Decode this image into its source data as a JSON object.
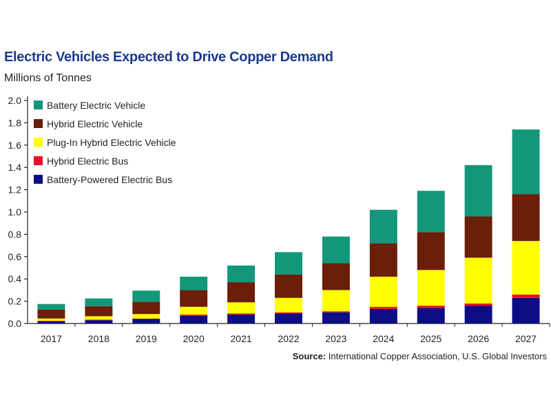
{
  "header": {
    "title": "Electric Vehicles Expected to Drive Copper Demand",
    "subtitle": "Millions of Tonnes"
  },
  "footer": {
    "source_label": "Source:",
    "source_text": "International Copper Association, U.S. Global Investors"
  },
  "chart_data": {
    "type": "bar",
    "stacked": true,
    "title": "Electric Vehicles Expected to Drive Copper Demand",
    "ylabel": "Millions of Tonnes",
    "xlabel": "",
    "ylim": [
      0,
      2.0
    ],
    "yticks": [
      "0.0",
      "0.2",
      "0.4",
      "0.6",
      "0.8",
      "1.0",
      "1.2",
      "1.4",
      "1.6",
      "1.8",
      "2.0"
    ],
    "grid": false,
    "legend_position": "top-left",
    "categories": [
      "2017",
      "2018",
      "2019",
      "2020",
      "2021",
      "2022",
      "2023",
      "2024",
      "2025",
      "2026",
      "2027"
    ],
    "series": [
      {
        "name": "Battery-Powered Electric Bus",
        "color": "#0d0d86",
        "values": [
          0.02,
          0.03,
          0.04,
          0.07,
          0.08,
          0.09,
          0.1,
          0.13,
          0.14,
          0.16,
          0.23
        ]
      },
      {
        "name": "Hybrid Electric Bus",
        "color": "#e8112d",
        "values": [
          0.005,
          0.005,
          0.005,
          0.01,
          0.01,
          0.01,
          0.01,
          0.02,
          0.02,
          0.02,
          0.03
        ]
      },
      {
        "name": "Plug-In Hybrid Electric Vehicle",
        "color": "#ffff00",
        "values": [
          0.02,
          0.03,
          0.04,
          0.07,
          0.1,
          0.13,
          0.19,
          0.27,
          0.32,
          0.41,
          0.48
        ]
      },
      {
        "name": "Hybrid Electric Vehicle",
        "color": "#6b1e0a",
        "values": [
          0.08,
          0.09,
          0.11,
          0.15,
          0.18,
          0.21,
          0.24,
          0.3,
          0.34,
          0.37,
          0.42
        ]
      },
      {
        "name": "Battery Electric Vehicle",
        "color": "#13977a",
        "values": [
          0.05,
          0.07,
          0.1,
          0.12,
          0.15,
          0.2,
          0.24,
          0.3,
          0.37,
          0.46,
          0.58
        ]
      }
    ]
  }
}
